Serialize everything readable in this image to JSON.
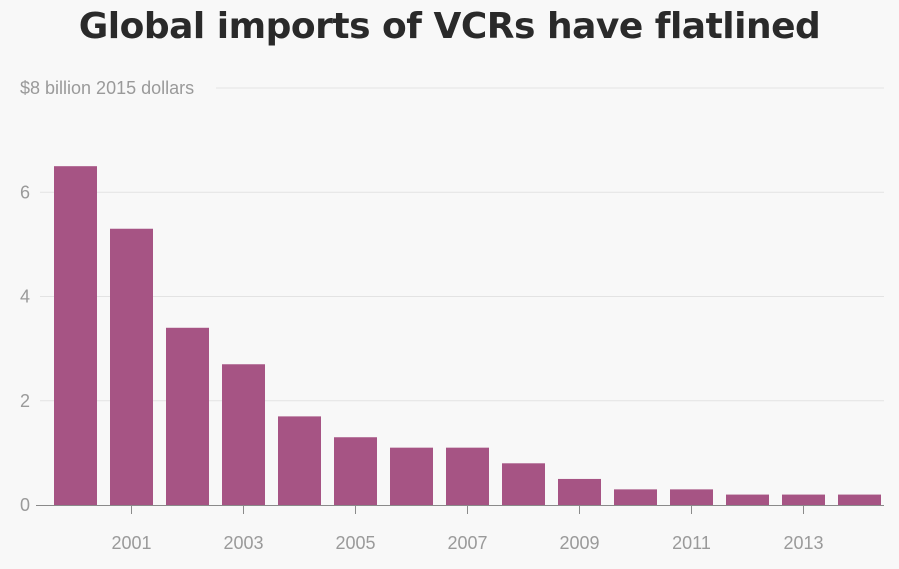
{
  "chart_data": {
    "type": "bar",
    "title": "Global imports of VCRs have flatlined",
    "ylabel": "$8 billion 2015 dollars",
    "xlabel": "",
    "categories": [
      "2000",
      "2001",
      "2002",
      "2003",
      "2004",
      "2005",
      "2006",
      "2007",
      "2008",
      "2009",
      "2010",
      "2011",
      "2012",
      "2013",
      "2014"
    ],
    "values": [
      6.5,
      5.3,
      3.4,
      2.7,
      1.7,
      1.3,
      1.1,
      1.1,
      0.8,
      0.5,
      0.3,
      0.3,
      0.2,
      0.2,
      0.2
    ],
    "ylim": [
      0,
      8
    ],
    "y_ticks": [
      "0",
      "2",
      "4",
      "6"
    ],
    "x_tick_labels": [
      "2001",
      "2003",
      "2005",
      "2007",
      "2009",
      "2011",
      "2013"
    ],
    "grid": true,
    "bar_color": "#a65484"
  }
}
